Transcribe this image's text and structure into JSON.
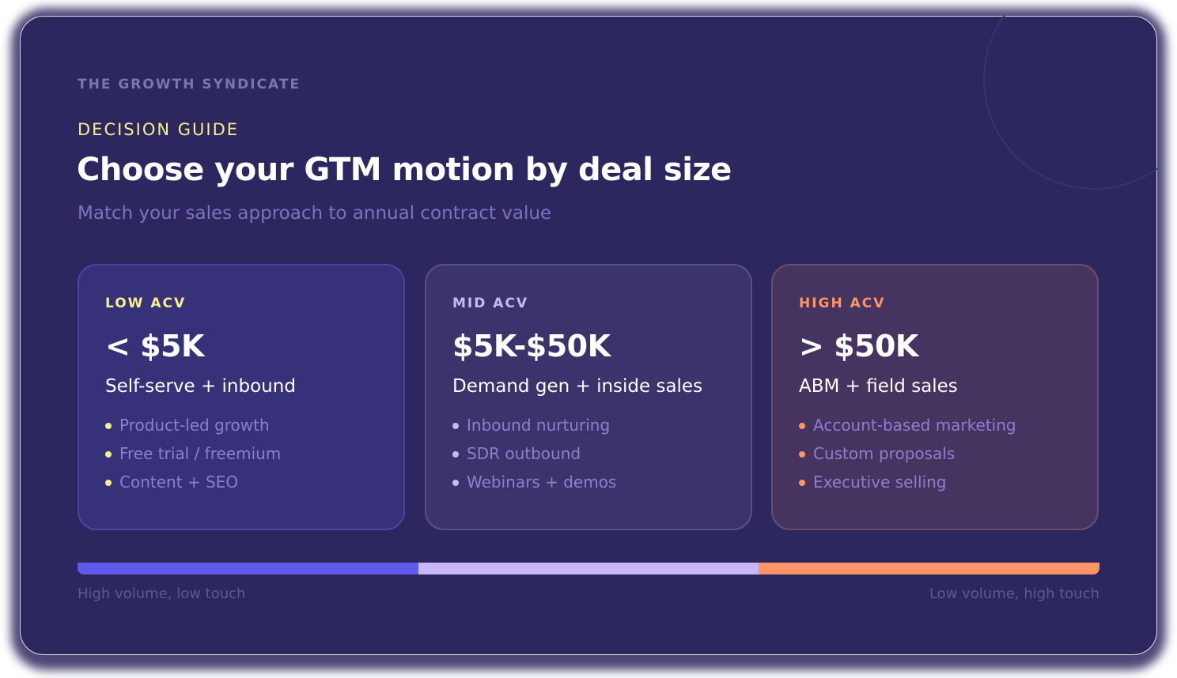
{
  "brand": "THE GROWTH SYNDICATE",
  "eyebrow": "DECISION GUIDE",
  "title": "Choose your GTM motion by deal size",
  "subtitle": "Match your sales approach to annual contract value",
  "colors": {
    "background": "#2d2760",
    "low": "#f7f08a",
    "mid": "#c8b8fb",
    "high": "#ff9466",
    "bar_low": "#6159ea",
    "bar_mid": "#c8b8fb",
    "bar_high": "#ff9466"
  },
  "cards": [
    {
      "tier": "LOW ACV",
      "range": "< $5K",
      "motion": "Self-serve + inbound",
      "bullets": [
        "Product-led growth",
        "Free trial / freemium",
        "Content + SEO"
      ]
    },
    {
      "tier": "MID ACV",
      "range": "$5K-$50K",
      "motion": "Demand gen + inside sales",
      "bullets": [
        "Inbound nurturing",
        "SDR outbound",
        "Webinars + demos"
      ]
    },
    {
      "tier": "HIGH ACV",
      "range": "> $50K",
      "motion": "ABM + field sales",
      "bullets": [
        "Account-based marketing",
        "Custom proposals",
        "Executive selling"
      ]
    }
  ],
  "scale": {
    "left_label": "High volume, low touch",
    "right_label": "Low volume, high touch"
  }
}
